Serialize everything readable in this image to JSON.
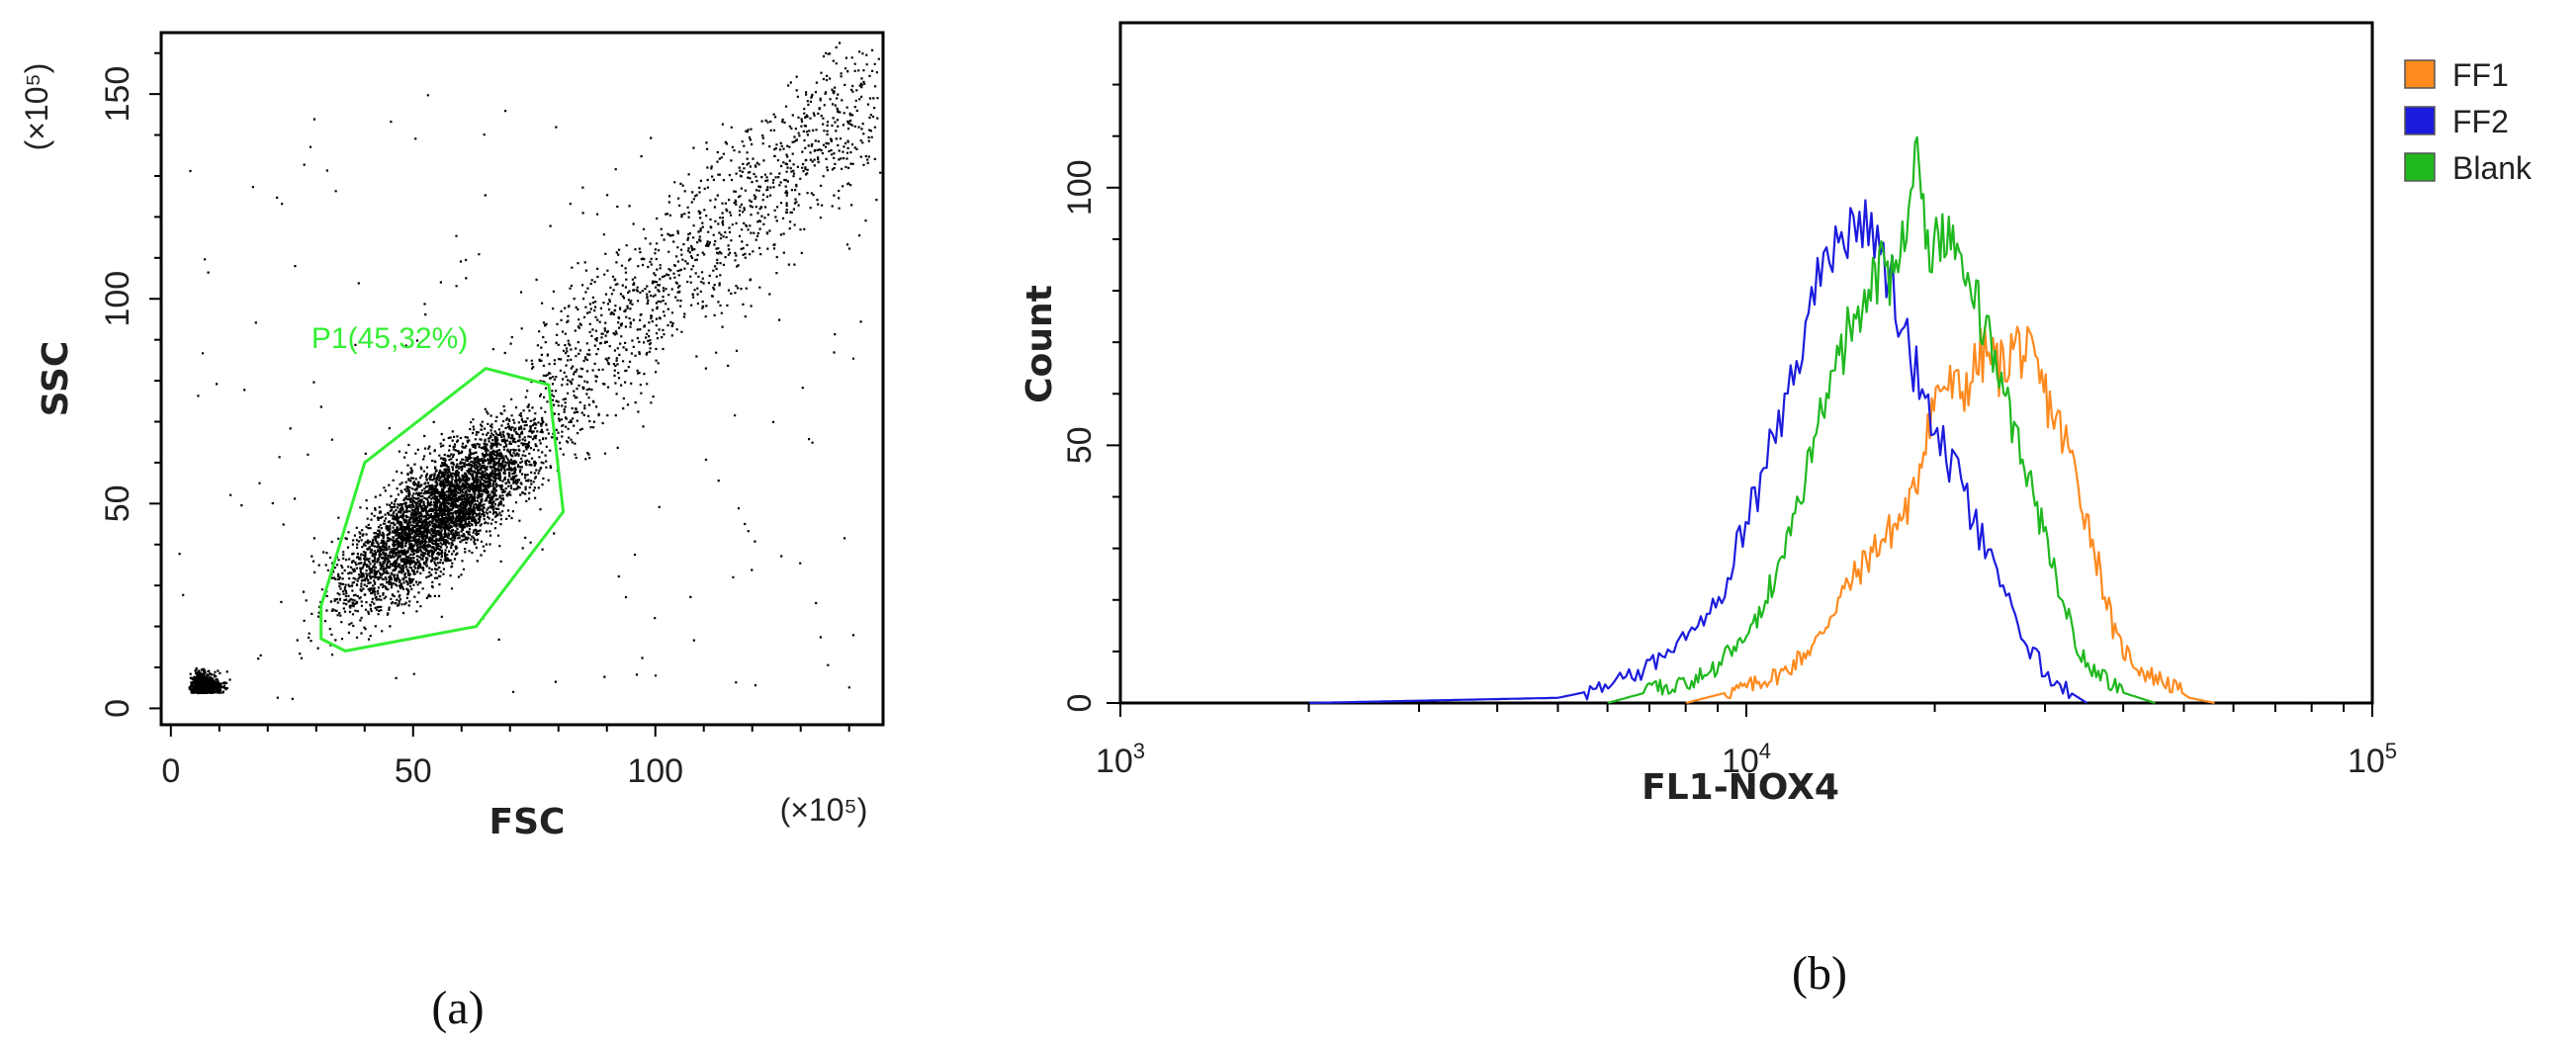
{
  "chart_data": [
    {
      "type": "scatter",
      "panel_label": "(a)",
      "xlabel": "FSC",
      "ylabel": "SSC",
      "x_unit": "(×10⁵)",
      "y_unit": "(×10⁵)",
      "xlim": [
        -2,
        147
      ],
      "ylim": [
        -4,
        165
      ],
      "x_ticks": [
        0,
        50,
        100
      ],
      "y_ticks": [
        0,
        50,
        100,
        150
      ],
      "x_tick_labels": [
        "0",
        "50",
        "100"
      ],
      "y_tick_labels": [
        "0",
        "50",
        "100",
        "150"
      ],
      "point_color": "#000000",
      "gate": {
        "label": "P1(45,32%)",
        "color": "#33ee33",
        "polygon": [
          [
            31,
            17
          ],
          [
            36,
            14
          ],
          [
            63,
            20
          ],
          [
            81,
            48
          ],
          [
            78,
            79
          ],
          [
            65,
            83
          ],
          [
            40,
            60
          ],
          [
            31,
            25
          ]
        ]
      }
    },
    {
      "type": "line",
      "panel_label": "(b)",
      "xlabel": "FL1-NOX4",
      "ylabel": "Count",
      "x_scale": "log",
      "xlim": [
        1000,
        100000
      ],
      "ylim": [
        0,
        132
      ],
      "y_ticks": [
        0,
        50,
        100
      ],
      "y_tick_labels": [
        "0",
        "50",
        "100"
      ],
      "x_tick_labels": [
        "10",
        "10",
        "10"
      ],
      "x_tick_exponents": [
        "3",
        "4",
        "5"
      ],
      "legend_position": "right",
      "series": [
        {
          "name": "FF1",
          "color": "#ff8a1f",
          "x": [
            8000,
            10000,
            11500,
            13000,
            14000,
            15000,
            16000,
            17500,
            18500,
            19500,
            20500,
            22000,
            24000,
            25500,
            27000,
            28500,
            30000,
            33000,
            36000,
            39000,
            43000,
            47000,
            51000,
            56000
          ],
          "y": [
            0,
            3,
            6,
            12,
            20,
            25,
            30,
            35,
            40,
            55,
            62,
            60,
            68,
            65,
            70,
            66,
            60,
            48,
            30,
            12,
            6,
            4,
            1,
            0
          ]
        },
        {
          "name": "FF2",
          "color": "#1c1cdd",
          "x": [
            2000,
            5000,
            6000,
            7000,
            8000,
            9000,
            10000,
            11000,
            12000,
            13000,
            14000,
            14800,
            15600,
            16400,
            17200,
            18000,
            19000,
            20500,
            22000,
            24000,
            26000,
            28000,
            30000,
            32000,
            35000
          ],
          "y": [
            0,
            1,
            3,
            7,
            14,
            20,
            35,
            50,
            65,
            82,
            90,
            92,
            95,
            87,
            80,
            70,
            62,
            50,
            42,
            30,
            20,
            12,
            6,
            3,
            0
          ]
        },
        {
          "name": "Blank",
          "color": "#1fb81f",
          "x": [
            6000,
            8500,
            10000,
            11500,
            12500,
            13500,
            14500,
            15500,
            16500,
            17500,
            18200,
            18800,
            19500,
            20500,
            21500,
            23000,
            25000,
            27000,
            29000,
            31000,
            34000,
            37000,
            40000,
            45000
          ],
          "y": [
            0,
            5,
            12,
            28,
            45,
            60,
            72,
            80,
            84,
            82,
            98,
            112,
            88,
            90,
            92,
            80,
            65,
            50,
            38,
            25,
            10,
            5,
            2,
            0
          ]
        }
      ]
    }
  ]
}
